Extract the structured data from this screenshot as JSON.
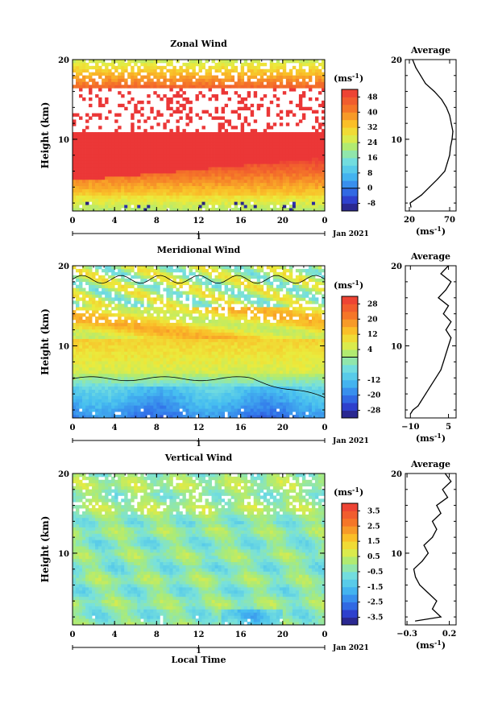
{
  "chart_data": [
    {
      "type": "heatmap",
      "title": "Zonal Wind",
      "ylabel": "Height (km)",
      "units_label": "(ms",
      "units_exp": "-1",
      "units_close": ")",
      "y_ticks": [
        "20",
        "10"
      ],
      "x_ticks": [
        "0",
        "4",
        "8",
        "12",
        "16",
        "20",
        "0"
      ],
      "day_label": "1",
      "date_label": "Jan 2021",
      "colorbar_ticks": [
        "48",
        "40",
        "32",
        "24",
        "16",
        "8",
        "0",
        "-8"
      ],
      "colorbar_range": [
        -12,
        52
      ],
      "zero_contour": 0,
      "profile": {
        "title": "Average",
        "x_ticks": [
          "20",
          "70"
        ],
        "y_ticks": [
          "20",
          "10"
        ],
        "xlabel": "(ms",
        "xlabel_exp": "-1",
        "xlabel_close": ")",
        "xlim": [
          15,
          78
        ],
        "heights": [
          1.5,
          2,
          2.5,
          3,
          4,
          5,
          6,
          7,
          8,
          9,
          10,
          11,
          12,
          13,
          14,
          15,
          16,
          17,
          18,
          19,
          20
        ],
        "values": [
          22,
          21,
          28,
          35,
          45,
          55,
          64,
          67,
          70,
          71,
          73,
          74,
          72,
          70,
          66,
          60,
          51,
          40,
          34,
          28,
          24
        ]
      }
    },
    {
      "type": "heatmap",
      "title": "Meridional Wind",
      "ylabel": "Height (km)",
      "units_label": "(ms",
      "units_exp": "-1",
      "units_close": ")",
      "y_ticks": [
        "20",
        "10"
      ],
      "x_ticks": [
        "0",
        "4",
        "8",
        "12",
        "16",
        "20",
        "0"
      ],
      "day_label": "1",
      "date_label": "Jan 2021",
      "colorbar_ticks": [
        "28",
        "20",
        "12",
        "4",
        "-12",
        "-20",
        "-28"
      ],
      "colorbar_range": [
        -32,
        32
      ],
      "zero_contour": 0,
      "profile": {
        "title": "Average",
        "x_ticks": [
          "−10",
          "5"
        ],
        "y_ticks": [
          "20",
          "10"
        ],
        "xlabel": "(ms",
        "xlabel_exp": "-1",
        "xlabel_close": ")",
        "xlim": [
          -12,
          8
        ],
        "heights": [
          1.5,
          2,
          2.5,
          3,
          4,
          5,
          6,
          7,
          8,
          9,
          10,
          11,
          12,
          13,
          14,
          15,
          16,
          17,
          18,
          19,
          20
        ],
        "values": [
          -10,
          -9,
          -7,
          -6,
          -4,
          -2,
          0,
          2,
          3,
          4,
          5,
          6,
          4,
          6,
          3,
          5,
          1,
          4,
          6,
          2,
          5
        ]
      }
    },
    {
      "type": "heatmap",
      "title": "Vertical Wind",
      "ylabel": "Height (km)",
      "units_label": "(ms",
      "units_exp": "-1",
      "units_close": ")",
      "y_ticks": [
        "20",
        "10"
      ],
      "x_ticks": [
        "0",
        "4",
        "8",
        "12",
        "16",
        "20",
        "0"
      ],
      "day_label": "1",
      "date_label": "Jan 2021",
      "xlabel": "Local Time",
      "colorbar_ticks": [
        "3.5",
        "2.5",
        "1.5",
        "0.5",
        "-0.5",
        "-1.5",
        "-2.5",
        "-3.5"
      ],
      "colorbar_range": [
        -4,
        4
      ],
      "profile": {
        "title": "Average",
        "x_ticks": [
          "−0.3",
          "0.2"
        ],
        "y_ticks": [
          "20",
          "10"
        ],
        "xlabel": "(ms",
        "xlabel_exp": "-1",
        "xlabel_close": ")",
        "xlim": [
          -0.32,
          0.28
        ],
        "heights": [
          1.5,
          2,
          3,
          4,
          5,
          6,
          7,
          8,
          9,
          10,
          11,
          12,
          13,
          14,
          15,
          16,
          17,
          18,
          19,
          20
        ],
        "values": [
          -0.2,
          0.1,
          0.0,
          0.05,
          -0.05,
          -0.15,
          -0.2,
          -0.22,
          -0.12,
          -0.05,
          -0.1,
          0.0,
          0.05,
          0.0,
          0.1,
          0.05,
          0.18,
          0.12,
          0.22,
          0.15
        ]
      }
    }
  ]
}
